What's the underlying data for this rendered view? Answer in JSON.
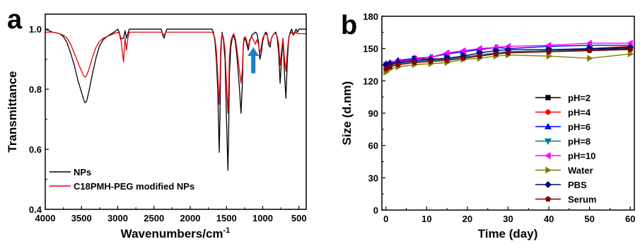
{
  "chart_data": [
    {
      "panel": "a",
      "type": "line",
      "title": "",
      "xlabel": "Wavenumbers/cm",
      "xlabel_superscript": "-1",
      "ylabel": "Transmittance",
      "xlim": [
        4000,
        400
      ],
      "ylim": [
        0.4,
        1.05
      ],
      "x_reversed": true,
      "xticks": [
        4000,
        3500,
        3000,
        2500,
        2000,
        1500,
        1000,
        500
      ],
      "yticks": [
        0.4,
        0.6,
        0.8,
        1.0
      ],
      "ytick_labels": [
        "0.4",
        "0.6",
        "0.8",
        "1.0"
      ],
      "grid": false,
      "legend_position": "bottom-left",
      "annotation": {
        "type": "arrow",
        "color": "#1e7fc8",
        "x": 1130,
        "y_from": 0.853,
        "y_to": 0.93
      },
      "series": [
        {
          "name": "NPs",
          "color": "#000000",
          "x": [
            4000,
            3900,
            3800,
            3750,
            3700,
            3650,
            3600,
            3550,
            3500,
            3470,
            3450,
            3430,
            3400,
            3350,
            3300,
            3250,
            3200,
            3150,
            3100,
            3050,
            3000,
            2980,
            2960,
            2940,
            2920,
            2900,
            2880,
            2860,
            2840,
            2820,
            2800,
            2700,
            2600,
            2500,
            2400,
            2380,
            2360,
            2340,
            2320,
            2300,
            2200,
            2100,
            2000,
            1900,
            1800,
            1700,
            1680,
            1660,
            1640,
            1620,
            1600,
            1590,
            1580,
            1570,
            1560,
            1540,
            1520,
            1500,
            1480,
            1470,
            1460,
            1440,
            1420,
            1400,
            1380,
            1360,
            1340,
            1320,
            1300,
            1280,
            1270,
            1260,
            1240,
            1220,
            1200,
            1180,
            1150,
            1120,
            1100,
            1080,
            1060,
            1040,
            1020,
            1000,
            980,
            960,
            940,
            920,
            900,
            880,
            860,
            840,
            820,
            800,
            780,
            760,
            740,
            720,
            700,
            680,
            660,
            640,
            620,
            600,
            580,
            560,
            540,
            520,
            500,
            480,
            450,
            400
          ],
          "y": [
            1.0,
            0.99,
            0.985,
            0.975,
            0.955,
            0.92,
            0.88,
            0.83,
            0.79,
            0.765,
            0.755,
            0.76,
            0.79,
            0.85,
            0.905,
            0.945,
            0.965,
            0.975,
            0.983,
            0.99,
            1.0,
            0.99,
            0.965,
            0.97,
            0.97,
            0.995,
            0.97,
            0.985,
            1.0,
            1.0,
            1.0,
            1.0,
            1.0,
            1.0,
            1.0,
            0.98,
            0.97,
            0.99,
            1.0,
            1.0,
            1.0,
            1.0,
            1.0,
            1.0,
            1.0,
            1.0,
            0.99,
            0.96,
            0.9,
            0.8,
            0.59,
            0.7,
            0.9,
            0.96,
            0.99,
            0.96,
            0.9,
            0.7,
            0.53,
            0.65,
            0.85,
            0.94,
            0.97,
            0.98,
            0.96,
            0.92,
            0.86,
            0.8,
            0.72,
            0.82,
            0.93,
            0.96,
            0.97,
            0.95,
            0.93,
            0.96,
            0.98,
            0.985,
            0.99,
            0.985,
            0.96,
            0.9,
            0.92,
            0.96,
            0.98,
            0.99,
            0.985,
            0.95,
            0.94,
            0.97,
            0.98,
            0.985,
            0.99,
            0.97,
            0.92,
            0.82,
            0.9,
            0.97,
            0.85,
            0.77,
            0.9,
            0.97,
            0.99,
            1.0,
            0.98,
            0.99,
            1.0,
            0.99,
            1.0,
            1.0,
            1.0,
            1.0
          ]
        },
        {
          "name": "C18PMH-PEG modified NPs",
          "color": "#e8000b",
          "x": [
            4000,
            3900,
            3800,
            3750,
            3700,
            3650,
            3600,
            3550,
            3500,
            3470,
            3450,
            3430,
            3400,
            3350,
            3300,
            3250,
            3200,
            3150,
            3100,
            3050,
            3000,
            2980,
            2960,
            2940,
            2920,
            2900,
            2880,
            2860,
            2840,
            2820,
            2800,
            2700,
            2600,
            2500,
            2400,
            2380,
            2360,
            2340,
            2320,
            2300,
            2200,
            2100,
            2000,
            1900,
            1800,
            1700,
            1680,
            1660,
            1640,
            1620,
            1600,
            1590,
            1580,
            1570,
            1560,
            1540,
            1520,
            1500,
            1480,
            1470,
            1460,
            1440,
            1420,
            1400,
            1380,
            1360,
            1340,
            1320,
            1300,
            1280,
            1270,
            1260,
            1240,
            1220,
            1200,
            1180,
            1150,
            1120,
            1100,
            1080,
            1060,
            1040,
            1020,
            1000,
            980,
            960,
            940,
            920,
            900,
            880,
            860,
            840,
            820,
            800,
            780,
            760,
            740,
            720,
            700,
            680,
            660,
            640,
            620,
            600,
            580,
            560,
            540,
            520,
            500,
            480,
            450,
            400
          ],
          "y": [
            0.99,
            0.99,
            0.985,
            0.98,
            0.97,
            0.95,
            0.92,
            0.89,
            0.86,
            0.845,
            0.84,
            0.845,
            0.865,
            0.905,
            0.94,
            0.96,
            0.97,
            0.975,
            0.98,
            0.985,
            0.99,
            0.985,
            0.975,
            0.93,
            0.89,
            0.97,
            0.93,
            0.97,
            0.99,
            0.99,
            0.99,
            0.99,
            0.99,
            0.99,
            0.99,
            0.985,
            0.98,
            0.99,
            0.99,
            0.99,
            0.99,
            0.99,
            0.99,
            0.99,
            0.99,
            0.99,
            0.985,
            0.97,
            0.93,
            0.85,
            0.75,
            0.82,
            0.94,
            0.97,
            0.985,
            0.97,
            0.93,
            0.82,
            0.72,
            0.8,
            0.91,
            0.96,
            0.975,
            0.985,
            0.97,
            0.94,
            0.9,
            0.86,
            0.82,
            0.87,
            0.94,
            0.97,
            0.975,
            0.96,
            0.94,
            0.965,
            0.975,
            0.96,
            0.95,
            0.965,
            0.95,
            0.92,
            0.94,
            0.97,
            0.98,
            0.985,
            0.98,
            0.96,
            0.95,
            0.97,
            0.98,
            0.985,
            0.985,
            0.975,
            0.95,
            0.88,
            0.93,
            0.97,
            0.9,
            0.86,
            0.93,
            0.975,
            0.985,
            0.99,
            0.98,
            0.985,
            0.99,
            0.985,
            0.985,
            0.985,
            0.985,
            0.985
          ]
        }
      ]
    },
    {
      "panel": "b",
      "type": "line",
      "title": "",
      "xlabel": "Time (day)",
      "ylabel": "Size (d.nm)",
      "xlim": [
        -1,
        61
      ],
      "ylim": [
        0,
        180
      ],
      "xticks": [
        0,
        10,
        20,
        30,
        40,
        50,
        60
      ],
      "yticks": [
        0,
        30,
        60,
        90,
        120,
        150,
        180
      ],
      "grid": false,
      "legend_position": "right",
      "series": [
        {
          "name": "pH=2",
          "color": "#000000",
          "marker": "square",
          "x": [
            0,
            1,
            3,
            7,
            11,
            15,
            19,
            23,
            27,
            30,
            40,
            50,
            60
          ],
          "y": [
            135,
            136,
            138,
            141,
            140,
            141,
            142,
            144,
            146,
            147,
            148,
            149,
            150
          ]
        },
        {
          "name": "pH=4",
          "color": "#ff0000",
          "marker": "circle",
          "x": [
            0,
            1,
            3,
            7,
            11,
            15,
            19,
            23,
            27,
            30,
            40,
            50,
            60
          ],
          "y": [
            134,
            135,
            137,
            139,
            140,
            141,
            142,
            143,
            145,
            146,
            148,
            150,
            152
          ]
        },
        {
          "name": "pH=6",
          "color": "#0000ff",
          "marker": "triangle-up",
          "x": [
            0,
            1,
            3,
            7,
            11,
            15,
            19,
            23,
            27,
            30,
            40,
            50,
            60
          ],
          "y": [
            136,
            137,
            139,
            141,
            142,
            145,
            147,
            149,
            151,
            150,
            152,
            153,
            153
          ]
        },
        {
          "name": "pH=8",
          "color": "#008080",
          "marker": "triangle-down",
          "x": [
            0,
            1,
            3,
            7,
            11,
            15,
            19,
            23,
            27,
            30,
            40,
            50,
            60
          ],
          "y": [
            133,
            134,
            136,
            138,
            139,
            140,
            142,
            144,
            146,
            147,
            148,
            150,
            151
          ]
        },
        {
          "name": "pH=10",
          "color": "#ff00ff",
          "marker": "triangle-left",
          "x": [
            0,
            1,
            3,
            7,
            11,
            15,
            19,
            23,
            27,
            30,
            40,
            50,
            60
          ],
          "y": [
            134,
            136,
            138,
            140,
            142,
            146,
            148,
            150,
            151,
            152,
            153,
            155,
            155
          ]
        },
        {
          "name": "Water",
          "color": "#808000",
          "marker": "triangle-right",
          "x": [
            0,
            1,
            3,
            7,
            11,
            15,
            19,
            23,
            27,
            30,
            40,
            50,
            60
          ],
          "y": [
            128,
            131,
            133,
            135,
            136,
            137,
            140,
            141,
            143,
            144,
            143,
            141,
            145
          ]
        },
        {
          "name": "PBS",
          "color": "#000080",
          "marker": "diamond",
          "x": [
            0,
            1,
            3,
            7,
            11,
            15,
            19,
            23,
            27,
            30,
            40,
            50,
            60
          ],
          "y": [
            135,
            136,
            137,
            139,
            140,
            141,
            143,
            146,
            148,
            149,
            149,
            150,
            151
          ]
        },
        {
          "name": "Serum",
          "color": "#800000",
          "marker": "pentagon",
          "x": [
            0,
            1,
            3,
            7,
            11,
            15,
            19,
            23,
            27,
            30,
            40,
            50,
            60
          ],
          "y": [
            131,
            133,
            135,
            137,
            138,
            139,
            141,
            143,
            145,
            146,
            147,
            148,
            149
          ]
        }
      ]
    }
  ]
}
